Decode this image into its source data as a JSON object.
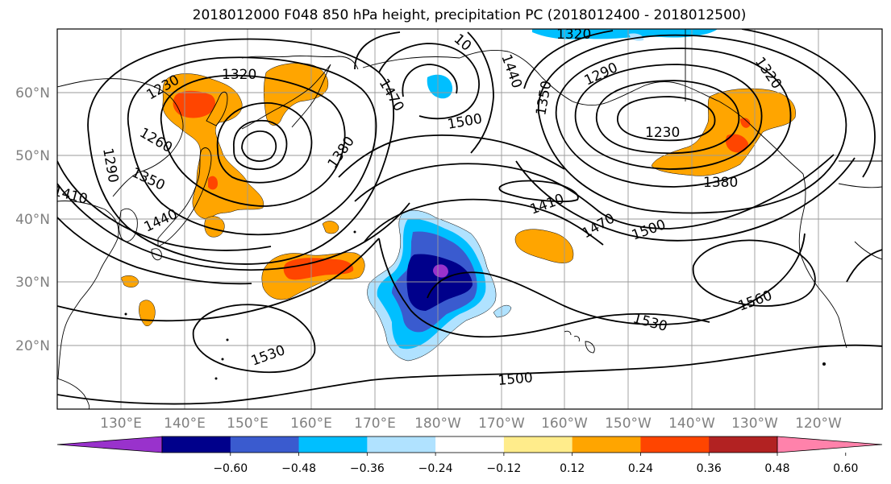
{
  "title": "2018012000 F048 850 hPa height, precipitation PC (2018012400 - 2018012500)",
  "lat_labels": [
    "20°N",
    "30°N",
    "40°N",
    "50°N",
    "60°N"
  ],
  "lon_labels": [
    "130°E",
    "140°E",
    "150°E",
    "160°E",
    "170°E",
    "180°W",
    "170°W",
    "160°W",
    "150°W",
    "140°W",
    "130°W",
    "120°W"
  ],
  "contour_labels": [
    "1320",
    "1230",
    "1290",
    "1260",
    "1350",
    "1410",
    "1440",
    "1380",
    "1470",
    "1440",
    "1350",
    "1500",
    "1320",
    "1290",
    "1230",
    "1320",
    "1380",
    "1410",
    "1470",
    "1500",
    "1560",
    "1530",
    "1530",
    "1500",
    "10"
  ],
  "colorbar": {
    "ticks": [
      "−0.60",
      "−0.48",
      "−0.36",
      "−0.24",
      "−0.12",
      "0.12",
      "0.24",
      "0.36",
      "0.48",
      "0.60"
    ],
    "colors": [
      "#9932cc",
      "#00008b",
      "#3a5bcf",
      "#00bfff",
      "#b0e2ff",
      "#ffffff",
      "#ffec8b",
      "#ffa500",
      "#ff4500",
      "#b22222",
      "#ff82ab"
    ]
  },
  "colors": {
    "pos_light": "#ffec8b",
    "pos_orange": "#ffa500",
    "pos_red": "#ff4500",
    "neg_light": "#b0e2ff",
    "neg_sky": "#00bfff",
    "neg_blue": "#3a5bcf",
    "neg_navy": "#00008b",
    "neg_purple": "#9932cc"
  }
}
